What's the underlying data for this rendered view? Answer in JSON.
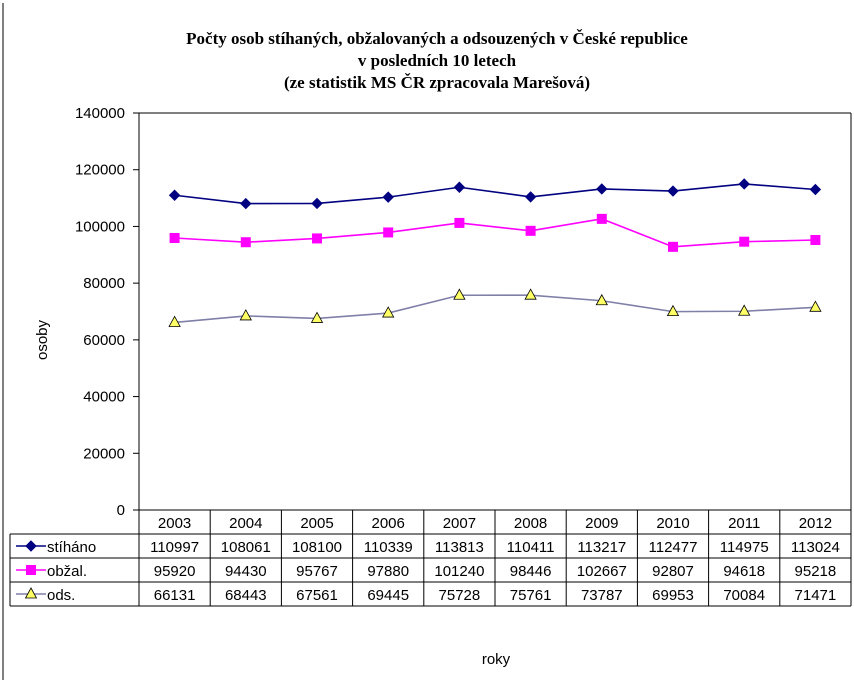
{
  "chart_data": {
    "type": "line",
    "title_lines": [
      "Počty osob stíhaných, obžalovaných a odsouzených v České republice",
      "v posledních 10 letech",
      "(ze statistik MS ČR zpracovala Marešová)"
    ],
    "xlabel": "roky",
    "ylabel": "osoby",
    "ylim": [
      0,
      140000
    ],
    "yticks": [
      0,
      20000,
      40000,
      60000,
      80000,
      100000,
      120000,
      140000
    ],
    "categories": [
      "2003",
      "2004",
      "2005",
      "2006",
      "2007",
      "2008",
      "2009",
      "2010",
      "2011",
      "2012"
    ],
    "grid": false,
    "legend": "data-table",
    "series": [
      {
        "name": "stíháno",
        "color": "#000080",
        "marker": "diamond",
        "values": [
          110997,
          108061,
          108100,
          110339,
          113813,
          110411,
          113217,
          112477,
          114975,
          113024
        ]
      },
      {
        "name": "obžal.",
        "color": "#ff00ff",
        "marker": "square",
        "values": [
          95920,
          94430,
          95767,
          97880,
          101240,
          98446,
          102667,
          92807,
          94618,
          95218
        ]
      },
      {
        "name": "ods.",
        "color": "#7f7fa8",
        "marker": "triangle",
        "marker_fill": "#ffff66",
        "values": [
          66131,
          68443,
          67561,
          69445,
          75728,
          75761,
          73787,
          69953,
          70084,
          71471
        ]
      }
    ]
  }
}
